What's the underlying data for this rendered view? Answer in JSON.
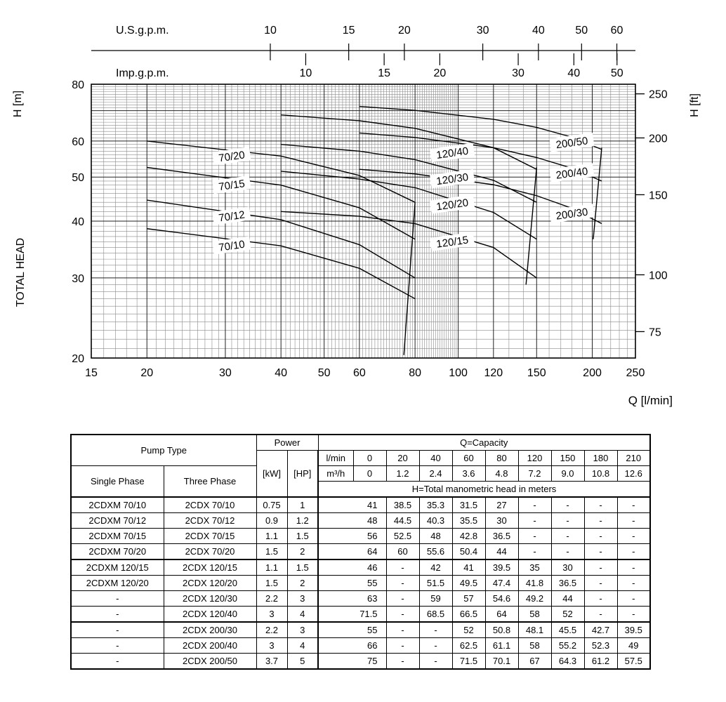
{
  "chart_data": {
    "type": "line",
    "x_axis": {
      "label": "Q [l/min]",
      "scale": "log",
      "min": 15,
      "max": 250,
      "ticks": [
        15,
        20,
        30,
        40,
        50,
        60,
        80,
        100,
        120,
        150,
        200,
        250
      ]
    },
    "y_axis": {
      "label": "H [m]",
      "secondary_label": "TOTAL HEAD",
      "scale": "log",
      "min": 20,
      "max": 80,
      "ticks": [
        80,
        60,
        50,
        40,
        30,
        20
      ]
    },
    "y_axis_right": {
      "label": "H [ft]",
      "ticks": [
        250,
        200,
        150,
        100,
        75
      ],
      "m_per_ft": 0.3048
    },
    "top_axes": [
      {
        "label": "U.S.g.p.m.",
        "ticks": [
          10,
          15,
          20,
          30,
          40,
          50,
          60
        ],
        "lpm_per_unit": 3.785
      },
      {
        "label": "Imp.g.p.m.",
        "ticks": [
          10,
          15,
          20,
          30,
          40,
          50
        ],
        "lpm_per_unit": 4.546
      }
    ],
    "series": [
      {
        "name": "70/10",
        "label_at": [
          31,
          35.3
        ],
        "points": [
          [
            20,
            38.5
          ],
          [
            40,
            35.3
          ],
          [
            60,
            31.5
          ],
          [
            80,
            27
          ]
        ]
      },
      {
        "name": "70/12",
        "label_at": [
          31,
          41
        ],
        "points": [
          [
            20,
            44.5
          ],
          [
            40,
            40.3
          ],
          [
            60,
            35.5
          ],
          [
            80,
            30
          ]
        ]
      },
      {
        "name": "70/15",
        "label_at": [
          31,
          48
        ],
        "points": [
          [
            20,
            52.5
          ],
          [
            40,
            48
          ],
          [
            60,
            42.8
          ],
          [
            80,
            36.5
          ]
        ]
      },
      {
        "name": "70/20",
        "label_at": [
          31,
          55.5
        ],
        "points": [
          [
            20,
            60
          ],
          [
            40,
            55.6
          ],
          [
            60,
            50.4
          ],
          [
            80,
            44
          ]
        ]
      },
      {
        "name": "120/15",
        "label_at": [
          97,
          36
        ],
        "points": [
          [
            40,
            42
          ],
          [
            60,
            41
          ],
          [
            80,
            39.5
          ],
          [
            120,
            35
          ],
          [
            150,
            30
          ]
        ]
      },
      {
        "name": "120/20",
        "label_at": [
          97,
          43.5
        ],
        "points": [
          [
            40,
            51.5
          ],
          [
            60,
            49.5
          ],
          [
            80,
            47.4
          ],
          [
            120,
            41.8
          ],
          [
            150,
            36.5
          ]
        ]
      },
      {
        "name": "120/30",
        "label_at": [
          97,
          49.5
        ],
        "points": [
          [
            40,
            59
          ],
          [
            60,
            57
          ],
          [
            80,
            54.6
          ],
          [
            120,
            49.2
          ],
          [
            150,
            44
          ]
        ]
      },
      {
        "name": "120/40",
        "label_at": [
          97,
          56.5
        ],
        "points": [
          [
            40,
            68.5
          ],
          [
            60,
            66.5
          ],
          [
            80,
            64
          ],
          [
            120,
            58
          ],
          [
            150,
            52
          ]
        ]
      },
      {
        "name": "200/30",
        "label_at": [
          180,
          41.5
        ],
        "points": [
          [
            60,
            52
          ],
          [
            80,
            50.8
          ],
          [
            120,
            48.1
          ],
          [
            150,
            45.5
          ],
          [
            180,
            42.7
          ],
          [
            210,
            39.5
          ]
        ]
      },
      {
        "name": "200/40",
        "label_at": [
          180,
          51
        ],
        "points": [
          [
            60,
            62.5
          ],
          [
            80,
            61.1
          ],
          [
            120,
            58
          ],
          [
            150,
            55.2
          ],
          [
            180,
            52.3
          ],
          [
            210,
            49
          ]
        ]
      },
      {
        "name": "200/50",
        "label_at": [
          180,
          59.5
        ],
        "points": [
          [
            60,
            71.5
          ],
          [
            80,
            70.1
          ],
          [
            120,
            67
          ],
          [
            150,
            64.3
          ],
          [
            180,
            61.2
          ],
          [
            210,
            57.5
          ]
        ]
      }
    ],
    "limit_lines": [
      [
        [
          80,
          44
        ],
        [
          75.5,
          20.3
        ]
      ],
      [
        [
          150,
          52.5
        ],
        [
          142,
          29
        ]
      ],
      [
        [
          210,
          58
        ],
        [
          201,
          36.5
        ]
      ]
    ]
  },
  "table": {
    "header": {
      "pump_type": "Pump Type",
      "single_phase": "Single Phase",
      "three_phase": "Three Phase",
      "power": "Power",
      "kw": "[kW]",
      "hp": "[HP]",
      "capacity": "Q=Capacity",
      "lmin_label": "l/min",
      "m3h_label": "m³/h",
      "lmin_values": [
        "0",
        "20",
        "40",
        "60",
        "80",
        "120",
        "150",
        "180",
        "210"
      ],
      "m3h_values": [
        "0",
        "1.2",
        "2.4",
        "3.6",
        "4.8",
        "7.2",
        "9.0",
        "10.8",
        "12.6"
      ],
      "head_note": "H=Total manometric head in meters"
    },
    "rows": [
      {
        "single": "2CDXM 70/10",
        "three": "2CDX 70/10",
        "kw": "0.75",
        "hp": "1",
        "h": [
          "41",
          "38.5",
          "35.3",
          "31.5",
          "27",
          "-",
          "-",
          "-",
          "-"
        ]
      },
      {
        "single": "2CDXM 70/12",
        "three": "2CDX 70/12",
        "kw": "0.9",
        "hp": "1.2",
        "h": [
          "48",
          "44.5",
          "40.3",
          "35.5",
          "30",
          "-",
          "-",
          "-",
          "-"
        ]
      },
      {
        "single": "2CDXM 70/15",
        "three": "2CDX 70/15",
        "kw": "1.1",
        "hp": "1.5",
        "h": [
          "56",
          "52.5",
          "48",
          "42.8",
          "36.5",
          "-",
          "-",
          "-",
          "-"
        ]
      },
      {
        "single": "2CDXM 70/20",
        "three": "2CDX 70/20",
        "kw": "1.5",
        "hp": "2",
        "h": [
          "64",
          "60",
          "55.6",
          "50.4",
          "44",
          "-",
          "-",
          "-",
          "-"
        ]
      },
      {
        "single": "2CDXM 120/15",
        "three": "2CDX 120/15",
        "kw": "1.1",
        "hp": "1.5",
        "h": [
          "46",
          "-",
          "42",
          "41",
          "39.5",
          "35",
          "30",
          "-",
          "-"
        ]
      },
      {
        "single": "2CDXM 120/20",
        "three": "2CDX 120/20",
        "kw": "1.5",
        "hp": "2",
        "h": [
          "55",
          "-",
          "51.5",
          "49.5",
          "47.4",
          "41.8",
          "36.5",
          "-",
          "-"
        ]
      },
      {
        "single": "-",
        "three": "2CDX 120/30",
        "kw": "2.2",
        "hp": "3",
        "h": [
          "63",
          "-",
          "59",
          "57",
          "54.6",
          "49.2",
          "44",
          "-",
          "-"
        ]
      },
      {
        "single": "-",
        "three": "2CDX 120/40",
        "kw": "3",
        "hp": "4",
        "h": [
          "71.5",
          "-",
          "68.5",
          "66.5",
          "64",
          "58",
          "52",
          "-",
          "-"
        ]
      },
      {
        "single": "-",
        "three": "2CDX 200/30",
        "kw": "2.2",
        "hp": "3",
        "h": [
          "55",
          "-",
          "-",
          "52",
          "50.8",
          "48.1",
          "45.5",
          "42.7",
          "39.5"
        ]
      },
      {
        "single": "-",
        "three": "2CDX 200/40",
        "kw": "3",
        "hp": "4",
        "h": [
          "66",
          "-",
          "-",
          "62.5",
          "61.1",
          "58",
          "55.2",
          "52.3",
          "49"
        ]
      },
      {
        "single": "-",
        "three": "2CDX 200/50",
        "kw": "3.7",
        "hp": "5",
        "h": [
          "75",
          "-",
          "-",
          "71.5",
          "70.1",
          "67",
          "64.3",
          "61.2",
          "57.5"
        ]
      }
    ]
  }
}
